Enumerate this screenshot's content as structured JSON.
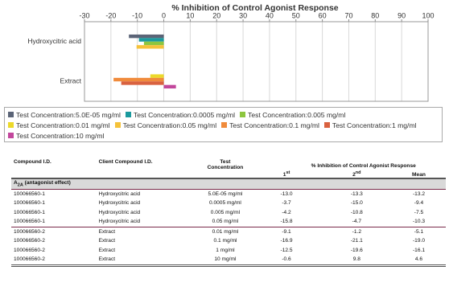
{
  "chart_data": {
    "type": "bar",
    "orientation": "horizontal",
    "title": "% Inhibition of Control Agonist Response",
    "categories": [
      "Hydroxycitric acid",
      "Extract"
    ],
    "series": [
      {
        "name": "Test Concentration:5.0E-05 mg/ml",
        "color": "#5b6477",
        "values": [
          -13.2,
          null
        ]
      },
      {
        "name": "Test Concentration:0.0005 mg/ml",
        "color": "#1a9a9e",
        "values": [
          -9.4,
          null
        ]
      },
      {
        "name": "Test Concentration:0.005 mg/ml",
        "color": "#8dc63f",
        "values": [
          -7.5,
          null
        ]
      },
      {
        "name": "Test Concentration:0.01 mg/ml",
        "color": "#ecd92a",
        "values": [
          null,
          -5.1
        ]
      },
      {
        "name": "Test Concentration:0.05 mg/ml",
        "color": "#f5c23a",
        "values": [
          -10.3,
          null
        ]
      },
      {
        "name": "Test Concentration:0.1 mg/ml",
        "color": "#f08b3c",
        "values": [
          null,
          -19.0
        ]
      },
      {
        "name": "Test Concentration:1 mg/ml",
        "color": "#d9613f",
        "values": [
          null,
          -16.1
        ]
      },
      {
        "name": "Test Concentration:10 mg/ml",
        "color": "#c2479c",
        "values": [
          null,
          4.6
        ]
      }
    ],
    "xlim": [
      -30,
      100
    ],
    "xticks": [
      -30,
      -20,
      -10,
      0,
      10,
      20,
      30,
      40,
      50,
      60,
      70,
      80,
      90,
      100
    ],
    "grid": true
  },
  "table": {
    "columns": [
      "Compound I.D.",
      "Client Compound I.D.",
      "Test Concentration"
    ],
    "group_header": "% Inhibition of Control Agonist Response",
    "subcolumns": [
      {
        "base": "1",
        "sup": "st"
      },
      {
        "base": "2",
        "sup": "nd"
      },
      "Mean"
    ],
    "section": {
      "base": "A",
      "sub": "2A",
      "rest": "(antagonist effect)"
    },
    "rows": [
      [
        "100066560-1",
        "Hydroxycitric acid",
        "5.0E-05 mg/ml",
        "-13.0",
        "-13.3",
        "-13.2"
      ],
      [
        "100066560-1",
        "Hydroxycitric acid",
        "0.0005 mg/ml",
        "-3.7",
        "-15.0",
        "-9.4"
      ],
      [
        "100066560-1",
        "Hydroxycitric acid",
        "0.005 mg/ml",
        "-4.2",
        "-10.8",
        "-7.5"
      ],
      [
        "100066560-1",
        "Hydroxycitric acid",
        "0.05 mg/ml",
        "-15.8",
        "-4.7",
        "-10.3"
      ],
      [
        "100066560-2",
        "Extract",
        "0.01 mg/ml",
        "-9.1",
        "-1.2",
        "-5.1"
      ],
      [
        "100066560-2",
        "Extract",
        "0.1 mg/ml",
        "-16.9",
        "-21.1",
        "-19.0"
      ],
      [
        "100066560-2",
        "Extract",
        "1 mg/ml",
        "-12.5",
        "-19.6",
        "-16.1"
      ],
      [
        "100066560-2",
        "Extract",
        "10 mg/ml",
        "-0.6",
        "9.8",
        "4.6"
      ]
    ]
  }
}
